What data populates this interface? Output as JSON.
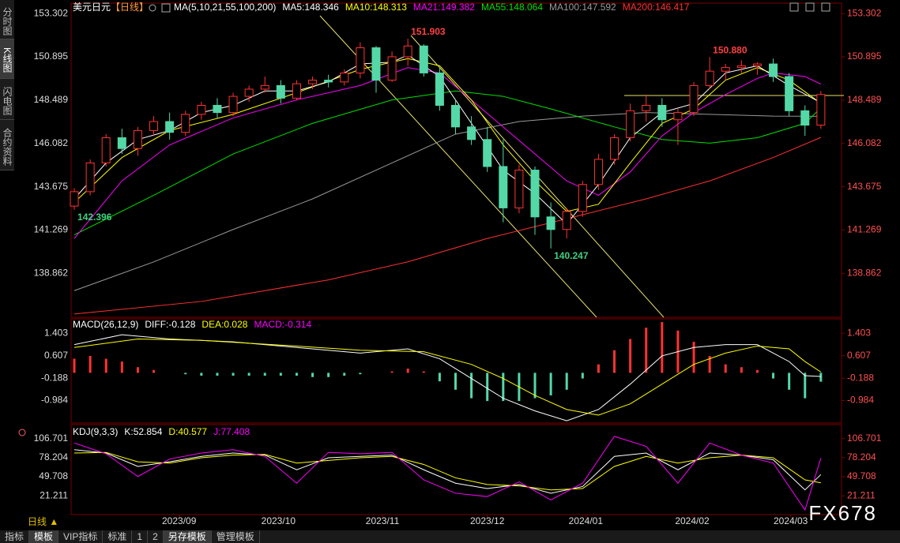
{
  "header": {
    "title": "美元日元",
    "period": "【日线】"
  },
  "sidebar": [
    "分时图",
    "K线图",
    "闪电图",
    "合约资料"
  ],
  "toolbar": {
    "period": "日线 ▲",
    "tabs": [
      "指标",
      "模板",
      "VIP指标",
      "标准",
      "1",
      "2",
      "另存模板",
      "管理模板"
    ]
  },
  "watermark": "FX678",
  "chart_data": [
    {
      "type": "candlestick",
      "legend_title": "MA(5,10,21,55,100,200)",
      "up_color": "#ff3232",
      "down_color": "#54d8a8",
      "xlim": [
        -0.2,
        48.3
      ],
      "xticks": [
        {
          "value": 6.6,
          "label": "2023/09"
        },
        {
          "value": 12.85,
          "label": "2023/10"
        },
        {
          "value": 19.4,
          "label": "2023/11"
        },
        {
          "value": 26.0,
          "label": "2023/12"
        },
        {
          "value": 32.2,
          "label": "2024/01"
        },
        {
          "value": 38.9,
          "label": "2024/02"
        },
        {
          "value": 45.1,
          "label": "2024/03"
        }
      ],
      "ylim": [
        136.42,
        153.88
      ],
      "yticks": [
        153.302,
        150.895,
        148.489,
        146.082,
        143.675,
        141.269,
        138.862
      ],
      "candles": {
        "open": [
          142.6,
          143.4,
          145.0,
          146.4,
          145.8,
          146.8,
          147.3,
          146.7,
          147.7,
          148.2,
          147.8,
          148.7,
          149.1,
          149.3,
          148.6,
          149.4,
          149.6,
          149.5,
          150.0,
          151.4,
          149.6,
          150.9,
          151.5,
          150.0,
          148.2,
          147.0,
          146.3,
          144.8,
          142.5,
          144.6,
          142.0,
          141.3,
          142.3,
          143.8,
          145.2,
          146.4,
          147.9,
          148.2,
          147.4,
          147.8,
          149.3,
          150.1,
          150.3,
          150.4,
          150.5,
          149.8,
          147.9,
          147.1
        ],
        "high": [
          143.6,
          145.2,
          146.6,
          146.9,
          147.0,
          147.6,
          147.8,
          147.9,
          148.4,
          148.6,
          148.9,
          149.3,
          149.8,
          149.6,
          149.6,
          149.8,
          149.9,
          150.2,
          151.7,
          151.5,
          151.2,
          151.903,
          151.6,
          150.3,
          148.5,
          147.6,
          147.0,
          146.3,
          144.9,
          144.8,
          142.8,
          142.5,
          144.0,
          145.5,
          146.6,
          148.3,
          148.8,
          148.6,
          148.0,
          149.5,
          150.88,
          150.5,
          150.7,
          150.6,
          150.8,
          150.0,
          148.2,
          149.0
        ],
        "low": [
          142.396,
          143.2,
          144.8,
          145.5,
          145.4,
          146.5,
          146.3,
          146.5,
          147.4,
          147.5,
          147.6,
          148.4,
          148.9,
          148.3,
          148.5,
          149.1,
          149.2,
          149.3,
          149.7,
          148.9,
          149.5,
          150.4,
          149.8,
          147.9,
          146.6,
          146.0,
          144.5,
          141.7,
          142.2,
          141.0,
          140.247,
          140.8,
          142.0,
          143.5,
          144.9,
          146.2,
          147.3,
          147.0,
          146.0,
          147.6,
          149.1,
          149.6,
          150.0,
          149.9,
          149.5,
          147.6,
          146.5,
          146.9
        ],
        "close": [
          143.4,
          145.0,
          146.4,
          145.8,
          146.8,
          147.3,
          146.7,
          147.7,
          148.2,
          147.8,
          148.7,
          149.1,
          149.3,
          148.6,
          149.4,
          149.6,
          149.5,
          150.0,
          151.4,
          149.6,
          150.9,
          151.5,
          150.0,
          148.2,
          147.0,
          146.3,
          144.8,
          142.5,
          144.6,
          142.0,
          141.3,
          142.3,
          143.8,
          145.2,
          146.4,
          147.9,
          148.2,
          147.4,
          147.8,
          149.3,
          150.1,
          150.3,
          150.4,
          150.5,
          149.8,
          147.9,
          147.1,
          148.8
        ]
      },
      "annotations": [
        {
          "x": 21,
          "value": 151.903,
          "label": "151.903",
          "color": "#ff4040"
        },
        {
          "x": 40,
          "value": 150.88,
          "label": "150.880",
          "color": "#ff4040"
        },
        {
          "x": 0,
          "value": 142.396,
          "label": "142.396",
          "color": "#40d080"
        },
        {
          "x": 30,
          "value": 140.247,
          "label": "140.247",
          "color": "#40d080"
        }
      ],
      "series": [
        {
          "name": "MA5:148.346",
          "color": "#ffffff",
          "x": [
            0,
            2,
            4,
            6,
            8,
            10,
            12,
            14,
            16,
            18,
            20,
            21,
            23,
            25,
            27,
            29,
            31,
            33,
            35,
            37,
            39,
            41,
            43,
            45,
            47
          ],
          "values": [
            143.0,
            145.0,
            146.3,
            146.8,
            147.8,
            148.2,
            149.0,
            149.0,
            149.5,
            150.5,
            150.6,
            151.0,
            149.8,
            147.2,
            144.6,
            143.3,
            141.6,
            143.8,
            146.4,
            147.8,
            148.3,
            150.0,
            150.4,
            149.3,
            148.346
          ]
        },
        {
          "name": "MA10:148.313",
          "color": "#ffff00",
          "x": [
            0,
            3,
            6,
            10,
            14,
            18,
            21,
            23,
            25,
            27,
            29,
            31,
            33,
            35,
            37,
            39,
            41,
            43,
            45,
            47
          ],
          "values": [
            142.8,
            145.3,
            146.8,
            147.7,
            148.9,
            150.2,
            150.8,
            150.4,
            148.5,
            146.0,
            144.0,
            142.3,
            142.7,
            145.0,
            147.2,
            148.0,
            149.6,
            150.3,
            149.6,
            148.313
          ]
        },
        {
          "name": "MA21:149.382",
          "color": "#ff00ff",
          "x": [
            0,
            3,
            6,
            10,
            14,
            18,
            21,
            23,
            25,
            27,
            29,
            31,
            33,
            35,
            37,
            39,
            41,
            43,
            44,
            46,
            47
          ],
          "values": [
            140.8,
            144.0,
            146.0,
            147.5,
            148.5,
            149.3,
            150.3,
            150.0,
            148.5,
            147.0,
            145.5,
            144.0,
            143.2,
            144.5,
            146.5,
            147.8,
            148.8,
            149.7,
            150.0,
            149.8,
            149.382
          ]
        },
        {
          "name": "MA55:148.064",
          "color": "#00e000",
          "x": [
            0,
            5,
            10,
            15,
            20,
            24,
            27,
            30,
            34,
            37,
            40,
            43,
            46,
            47
          ],
          "values": [
            141.0,
            143.2,
            145.5,
            147.2,
            148.5,
            149.0,
            148.7,
            148.0,
            147.0,
            146.3,
            146.1,
            146.4,
            147.2,
            148.064
          ]
        },
        {
          "name": "MA100:147.592",
          "color": "#999999",
          "x": [
            0,
            5,
            10,
            15,
            20,
            24,
            28,
            32,
            36,
            40,
            44,
            47
          ],
          "values": [
            137.9,
            139.5,
            141.3,
            143.0,
            145.0,
            146.6,
            147.3,
            147.6,
            147.8,
            147.7,
            147.6,
            147.592
          ]
        },
        {
          "name": "MA200:146.417",
          "color": "#ff3030",
          "x": [
            0,
            8,
            16,
            21,
            26,
            31,
            36,
            40,
            44,
            47
          ],
          "values": [
            136.6,
            137.3,
            138.5,
            139.5,
            140.8,
            141.9,
            143.0,
            144.0,
            145.3,
            146.417
          ]
        }
      ]
    },
    {
      "type": "macd",
      "legend_title": "MACD(26,12,9)",
      "ylim": [
        -1.78,
        1.914
      ],
      "yticks": [
        1.403,
        0.607,
        -0.188,
        -0.984
      ],
      "histogram": {
        "name": "MACD:-0.314",
        "color": "#ff00ff",
        "up_color": "#ff3232",
        "down_color": "#54d8a8",
        "values": [
          0.5,
          0.6,
          0.5,
          0.4,
          0.2,
          0.1,
          0.0,
          -0.05,
          -0.1,
          -0.1,
          -0.1,
          -0.1,
          -0.1,
          -0.1,
          -0.1,
          -0.15,
          -0.15,
          -0.1,
          -0.05,
          0.0,
          0.05,
          0.15,
          0.05,
          -0.3,
          -0.6,
          -0.9,
          -1.0,
          -1.0,
          -1.0,
          -0.9,
          -0.8,
          -0.6,
          -0.2,
          0.3,
          0.8,
          1.2,
          1.6,
          1.8,
          1.5,
          1.1,
          0.6,
          0.3,
          0.2,
          0.1,
          -0.2,
          -0.6,
          -0.9,
          -0.314
        ]
      },
      "series": [
        {
          "name": "DIFF:-0.128",
          "color": "#ffffff",
          "x": [
            0,
            3,
            6,
            10,
            14,
            18,
            21,
            23,
            25,
            27,
            29,
            31,
            33,
            35,
            37,
            39,
            41,
            43,
            45,
            46,
            47
          ],
          "values": [
            1.0,
            1.35,
            1.2,
            1.1,
            0.9,
            0.7,
            0.85,
            0.5,
            -0.2,
            -0.9,
            -1.35,
            -1.7,
            -1.3,
            -0.4,
            0.6,
            0.9,
            1.0,
            1.0,
            0.4,
            -0.1,
            -0.128
          ]
        },
        {
          "name": "DEA:0.028",
          "color": "#ffff00",
          "x": [
            0,
            4,
            8,
            14,
            18,
            22,
            25,
            27,
            29,
            31,
            33,
            35,
            37,
            39,
            41,
            43,
            45,
            46,
            47
          ],
          "values": [
            0.9,
            1.2,
            1.15,
            0.95,
            0.8,
            0.75,
            0.3,
            -0.2,
            -0.8,
            -1.3,
            -1.5,
            -1.1,
            -0.4,
            0.3,
            0.7,
            0.95,
            0.85,
            0.4,
            0.028
          ]
        }
      ]
    },
    {
      "type": "kdj",
      "legend_title": "KDJ(9,3,3)",
      "ylim": [
        -6.9,
        127.5
      ],
      "yticks": [
        106.701,
        78.204,
        49.708,
        21.211
      ],
      "series": [
        {
          "name": "K:52.854",
          "color": "#ffffff",
          "x": [
            0,
            2,
            4,
            6,
            8,
            10,
            12,
            14,
            16,
            18,
            20,
            22,
            24,
            26,
            28,
            30,
            32,
            34,
            36,
            38,
            40,
            42,
            44,
            46,
            47
          ],
          "values": [
            90,
            85,
            65,
            72,
            80,
            85,
            82,
            60,
            78,
            80,
            82,
            60,
            40,
            32,
            38,
            25,
            35,
            80,
            85,
            60,
            85,
            82,
            75,
            30,
            52.854
          ]
        },
        {
          "name": "D:40.577",
          "color": "#ffff00",
          "x": [
            0,
            2,
            4,
            6,
            8,
            10,
            12,
            14,
            16,
            18,
            20,
            22,
            24,
            26,
            28,
            30,
            32,
            34,
            36,
            38,
            40,
            42,
            44,
            46,
            47
          ],
          "values": [
            85,
            86,
            72,
            70,
            78,
            82,
            83,
            70,
            74,
            78,
            80,
            68,
            48,
            38,
            36,
            30,
            32,
            65,
            80,
            70,
            78,
            82,
            78,
            45,
            40.577
          ]
        },
        {
          "name": "J:77.408",
          "color": "#ff00ff",
          "x": [
            0,
            2,
            4,
            6,
            8,
            10,
            12,
            14,
            16,
            18,
            20,
            22,
            24,
            26,
            28,
            30,
            32,
            34,
            36,
            38,
            40,
            42,
            44,
            46,
            47
          ],
          "values": [
            100,
            84,
            50,
            76,
            85,
            90,
            80,
            40,
            86,
            84,
            86,
            45,
            25,
            20,
            42,
            15,
            40,
            110,
            95,
            40,
            100,
            82,
            70,
            0,
            77.408
          ]
        }
      ]
    }
  ]
}
